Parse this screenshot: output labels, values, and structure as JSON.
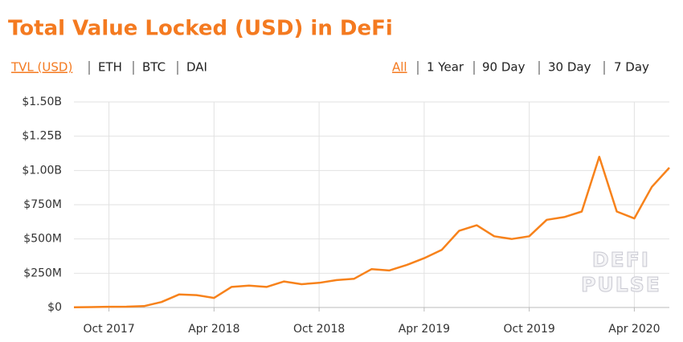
{
  "chart_data": {
    "type": "line",
    "title": "Total Value Locked (USD) in DeFi",
    "metric_tabs": [
      "TVL (USD)",
      "ETH",
      "BTC",
      "DAI"
    ],
    "range_tabs": [
      "All",
      "1 Year",
      "90 Day",
      "30 Day",
      "7 Day"
    ],
    "watermark": [
      "DEFI",
      "PULSE"
    ],
    "x": [
      "2017-08",
      "2017-09",
      "2017-10",
      "2017-11",
      "2017-12",
      "2018-01",
      "2018-02",
      "2018-03",
      "2018-04",
      "2018-05",
      "2018-06",
      "2018-07",
      "2018-08",
      "2018-09",
      "2018-10",
      "2018-11",
      "2018-12",
      "2019-01",
      "2019-02",
      "2019-03",
      "2019-04",
      "2019-05",
      "2019-06",
      "2019-07",
      "2019-08",
      "2019-09",
      "2019-10",
      "2019-11",
      "2019-12",
      "2020-01",
      "2020-02",
      "2020-03",
      "2020-04",
      "2020-05",
      "2020-06"
    ],
    "series": [
      {
        "name": "TVL (USD)",
        "color": "#f7821b",
        "values": [
          2000000,
          3000000,
          5000000,
          6000000,
          10000000,
          40000000,
          95000000,
          90000000,
          70000000,
          150000000,
          160000000,
          150000000,
          190000000,
          170000000,
          180000000,
          200000000,
          210000000,
          280000000,
          270000000,
          310000000,
          360000000,
          420000000,
          560000000,
          600000000,
          520000000,
          500000000,
          520000000,
          640000000,
          660000000,
          700000000,
          1100000000,
          700000000,
          650000000,
          880000000,
          1020000000
        ]
      }
    ],
    "xlim": [
      "2017-08",
      "2020-06"
    ],
    "xticks": [
      {
        "value": "2017-10",
        "label": "Oct 2017"
      },
      {
        "value": "2018-04",
        "label": "Apr 2018"
      },
      {
        "value": "2018-10",
        "label": "Oct 2018"
      },
      {
        "value": "2019-04",
        "label": "Apr 2019"
      },
      {
        "value": "2019-10",
        "label": "Oct 2019"
      },
      {
        "value": "2020-04",
        "label": "Apr 2020"
      }
    ],
    "ylim": [
      0,
      1500000000
    ],
    "yticks": [
      {
        "value": 0,
        "label": "$0"
      },
      {
        "value": 250000000,
        "label": "$250M"
      },
      {
        "value": 500000000,
        "label": "$500M"
      },
      {
        "value": 750000000,
        "label": "$750M"
      },
      {
        "value": 1000000000,
        "label": "$1.00B"
      },
      {
        "value": 1250000000,
        "label": "$1.25B"
      },
      {
        "value": 1500000000,
        "label": "$1.50B"
      }
    ],
    "grid": true
  }
}
